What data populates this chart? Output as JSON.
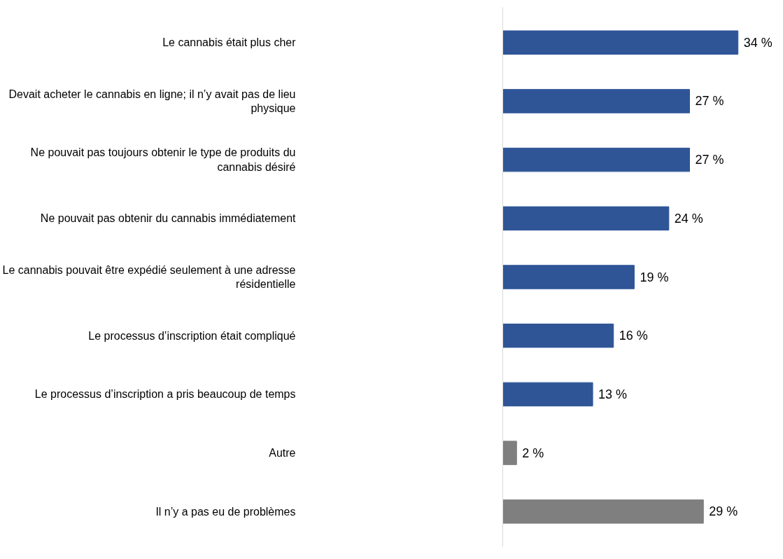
{
  "chart_data": {
    "type": "bar",
    "orientation": "horizontal",
    "categories": [
      "Le cannabis était plus cher",
      "Devait acheter le cannabis en ligne; il n’y avait pas de lieu physique",
      "Ne pouvait pas toujours obtenir le type de produits du cannabis désiré",
      "Ne pouvait pas obtenir du cannabis immédiatement",
      "Le cannabis pouvait être expédié seulement à une adresse résidentielle",
      "Le processus d’inscription était compliqué",
      "Le processus d’inscription a pris beaucoup de temps",
      "Autre",
      "Il n’y a pas eu de problèmes"
    ],
    "values": [
      34,
      27,
      27,
      24,
      19,
      16,
      13,
      2,
      29
    ],
    "value_labels": [
      "34 %",
      "27 %",
      "27 %",
      "24 %",
      "19 %",
      "16 %",
      "13 %",
      "2 %",
      "29 %"
    ],
    "colors": [
      "#2f5597",
      "#2f5597",
      "#2f5597",
      "#2f5597",
      "#2f5597",
      "#2f5597",
      "#2f5597",
      "#7f7f7f",
      "#7f7f7f"
    ],
    "grid": false
  }
}
